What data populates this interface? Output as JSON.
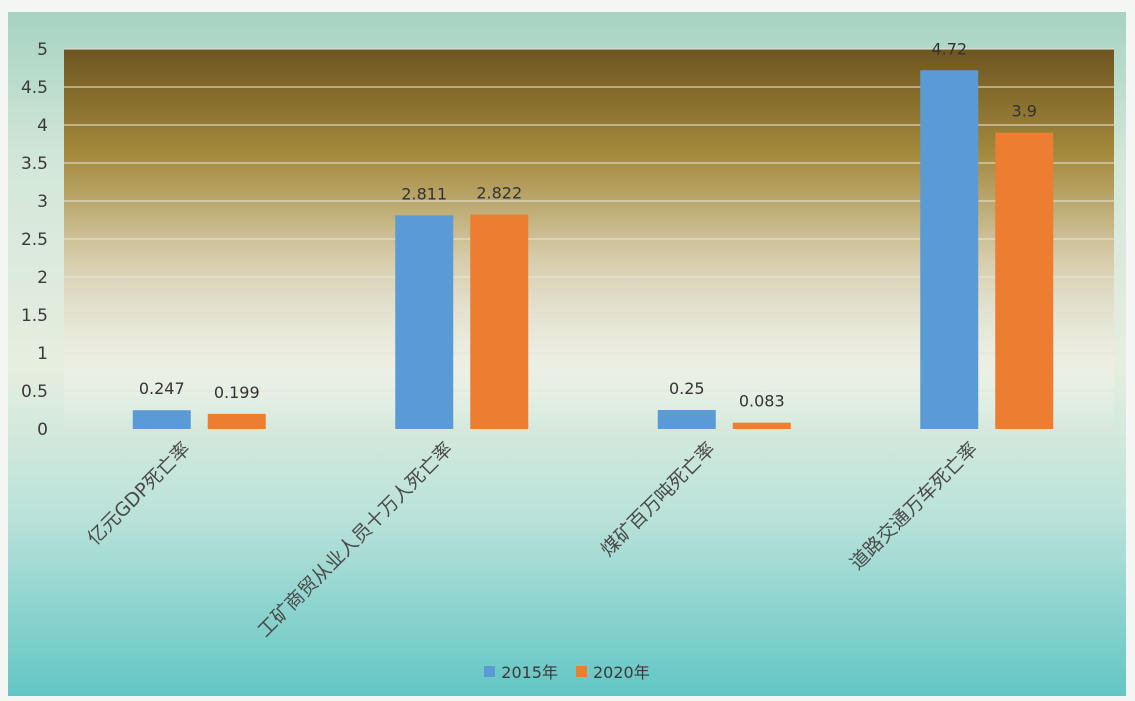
{
  "chart_data": {
    "type": "bar",
    "categories": [
      "亿元GDP死亡率",
      "工矿商贸从业人员十万人死亡率",
      "煤矿百万吨死亡率",
      "道路交通万车死亡率"
    ],
    "series": [
      {
        "name": "2015年",
        "values": [
          0.247,
          2.811,
          0.25,
          4.72
        ],
        "labels": [
          "0.247",
          "2.811",
          "0.25",
          "4.72"
        ],
        "color": "#5b9bd5"
      },
      {
        "name": "2020年",
        "values": [
          0.199,
          2.822,
          0.083,
          3.9
        ],
        "labels": [
          "0.199",
          "2.822",
          "0.083",
          "3.9"
        ],
        "color": "#ed7d31"
      }
    ],
    "ylim": [
      0,
      5
    ],
    "yticks": [
      "0",
      "0.5",
      "1",
      "1.5",
      "2",
      "2.5",
      "3",
      "3.5",
      "4",
      "4.5",
      "5"
    ],
    "grid": true,
    "legend_position": "bottom-center",
    "plot_background": [
      "#6e5520",
      "#ffffff"
    ]
  }
}
